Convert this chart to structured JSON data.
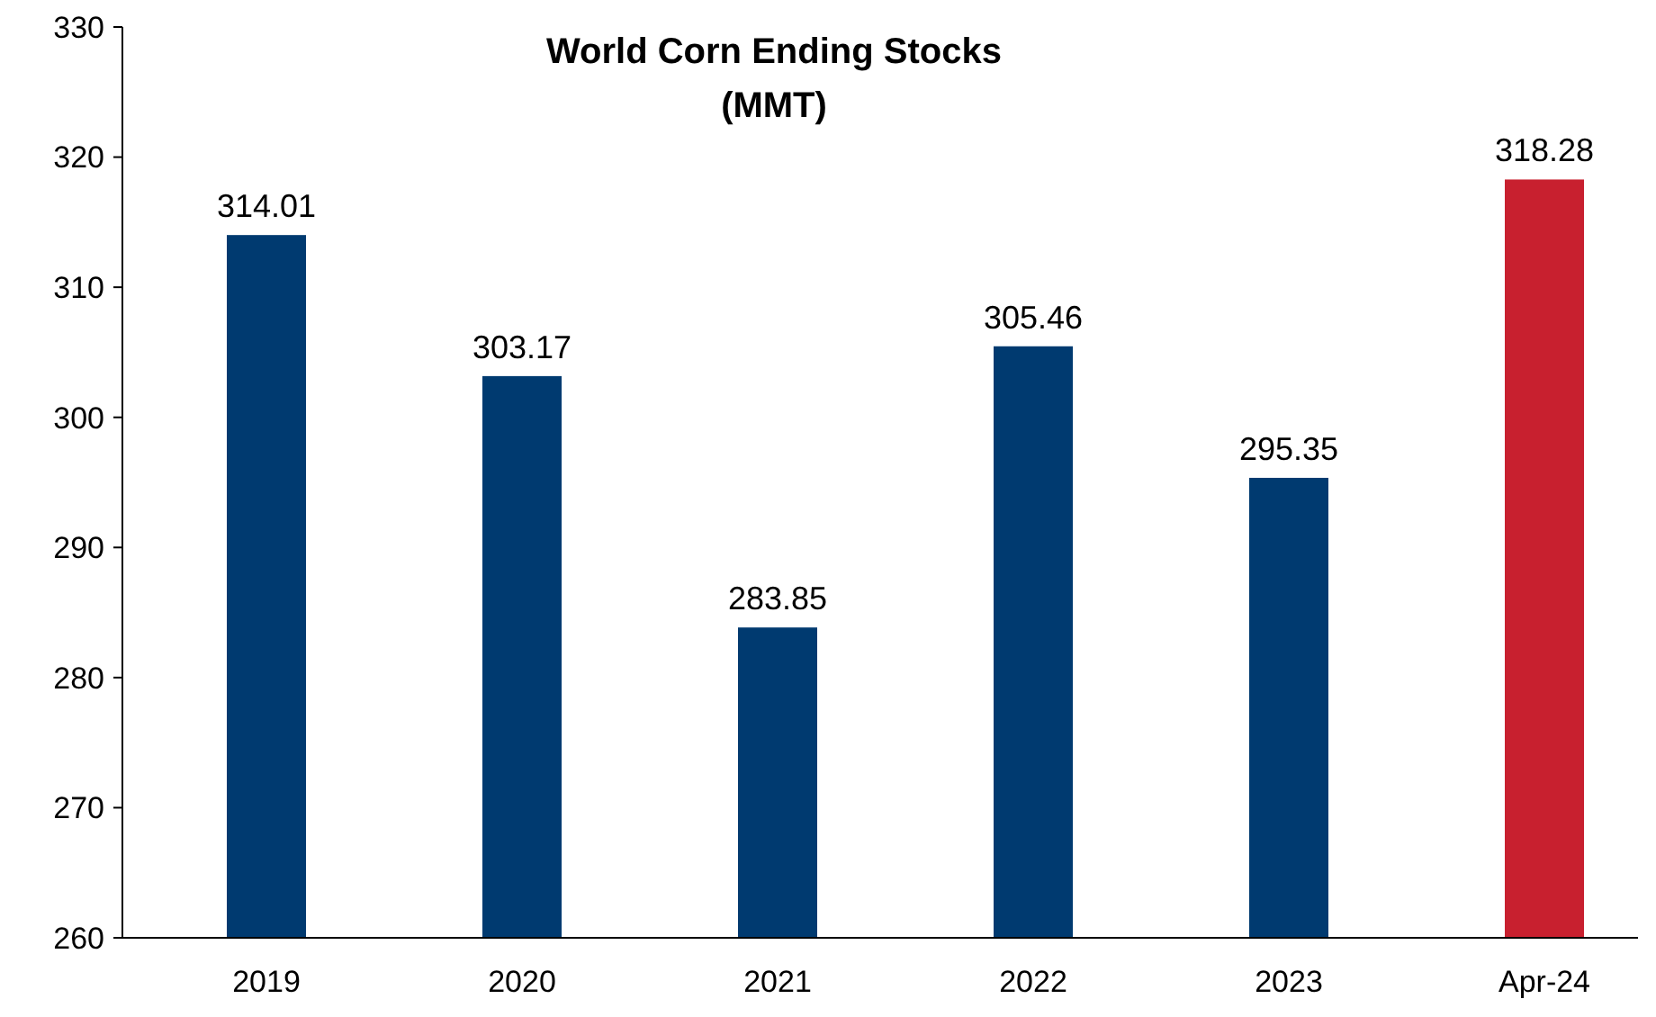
{
  "chart_data": {
    "type": "bar",
    "title": "World Corn Ending Stocks\n(MMT)",
    "categories": [
      "2019",
      "2020",
      "2021",
      "2022",
      "2023",
      "Apr-24"
    ],
    "values": [
      314.01,
      303.17,
      283.85,
      305.46,
      295.35,
      318.28
    ],
    "colors": [
      "#003a70",
      "#003a70",
      "#003a70",
      "#003a70",
      "#003a70",
      "#c8202f"
    ],
    "ylim": [
      260,
      330
    ],
    "yticks": [
      260,
      270,
      280,
      290,
      300,
      310,
      320,
      330
    ],
    "grid": false,
    "data_labels": true
  }
}
